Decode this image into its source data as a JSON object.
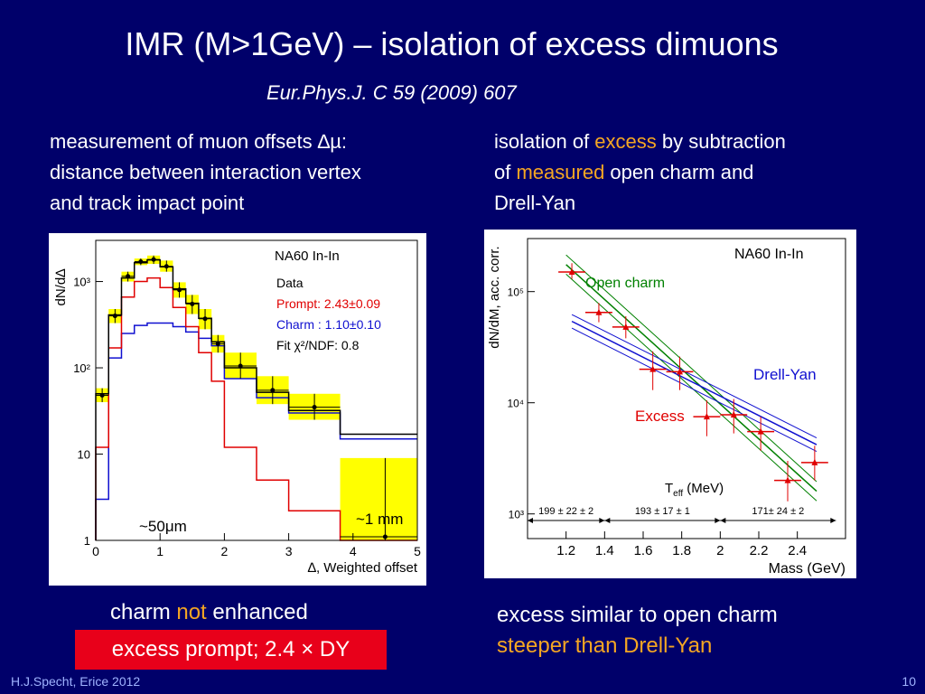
{
  "slide": {
    "title": "IMR (M>1GeV) – isolation of excess dimuons",
    "reference": "Eur.Phys.J. C 59 (2009) 607",
    "left_note_l1": "measurement of muon offsets ∆µ:",
    "left_note_l2": "distance between interaction vertex",
    "left_note_l3": "and track impact point",
    "right_note_a": "isolation of ",
    "right_note_b": "excess",
    "right_note_c": " by subtraction",
    "right_note_d": "of ",
    "right_note_e": "measured",
    "right_note_f": " open charm and",
    "right_note_g": "Drell-Yan",
    "bottom_left_a": "charm ",
    "bottom_left_b": "not",
    "bottom_left_c": " enhanced",
    "boxed_text": "excess prompt;  2.4 × DY",
    "bottom_right_1": "excess similar to open charm",
    "bottom_right_2": "steeper than Drell-Yan",
    "footer_left": "H.J.Specht, Erice 2012",
    "footer_right": "10"
  },
  "colors": {
    "background": "#00006a",
    "highlight": "#f5a623",
    "boxed": "#e8001a",
    "prompt": "#e00000",
    "charm": "#1010d0",
    "band": "#ffff00",
    "open_charm": "#008000"
  },
  "chart_data": [
    {
      "type": "bar",
      "label_top": "NA60 In-In",
      "ylabel": "dN/d∆",
      "xlabel": "∆, Weighted offset",
      "xlim": [
        0,
        5
      ],
      "ylim": [
        1,
        3000
      ],
      "yscale": "log",
      "x_ticks": [
        "0",
        "1",
        "2",
        "3",
        "4",
        "5"
      ],
      "y_ticks": [
        {
          "v": 1,
          "t": "1"
        },
        {
          "v": 10,
          "t": "10"
        },
        {
          "v": 100,
          "t": "10²"
        },
        {
          "v": 1000,
          "t": "10³"
        }
      ],
      "legend": [
        "Data",
        "Prompt: 2.43±0.09",
        "Charm : 1.10±0.10",
        "Fit  χ²/NDF:  0.8"
      ],
      "bin_edges": [
        0.0,
        0.2,
        0.4,
        0.6,
        0.8,
        1.0,
        1.2,
        1.4,
        1.6,
        1.8,
        2.0,
        2.5,
        3.0,
        3.8,
        5.0
      ],
      "data": {
        "x": [
          0.1,
          0.3,
          0.5,
          0.7,
          0.9,
          1.1,
          1.3,
          1.5,
          1.7,
          1.9,
          2.25,
          2.75,
          3.4,
          4.5
        ],
        "y": [
          48,
          400,
          1150,
          1700,
          1800,
          1500,
          800,
          550,
          370,
          190,
          105,
          55,
          35,
          1.1
        ],
        "band_lo": [
          40,
          330,
          1000,
          1550,
          1600,
          1300,
          650,
          420,
          280,
          150,
          75,
          38,
          25,
          1
        ],
        "band_hi": [
          58,
          480,
          1300,
          1850,
          2000,
          1750,
          980,
          700,
          480,
          240,
          150,
          80,
          50,
          9
        ]
      },
      "series": [
        {
          "name": "Prompt",
          "values": [
            12,
            170,
            660,
            1000,
            1100,
            850,
            500,
            300,
            150,
            70,
            12,
            5,
            2.2,
            1
          ]
        },
        {
          "name": "Charm",
          "values": [
            3,
            130,
            250,
            310,
            330,
            330,
            300,
            260,
            220,
            180,
            75,
            45,
            30,
            15
          ]
        }
      ],
      "fit_total": [
        50,
        410,
        1100,
        1650,
        1780,
        1480,
        820,
        560,
        375,
        200,
        100,
        52,
        32,
        17
      ],
      "annotations": [
        "~50μm",
        "~1 mm"
      ]
    },
    {
      "type": "scatter",
      "label_top": "NA60 In-In",
      "ylabel": "dN/dM, acc. corr.",
      "xlabel": "Mass (GeV)",
      "xlim": [
        1.0,
        2.65
      ],
      "ylim": [
        600,
        300000
      ],
      "yscale": "log",
      "x_ticks": [
        "1.2",
        "1.4",
        "1.6",
        "1.8",
        "2",
        "2.2",
        "2.4"
      ],
      "y_ticks": [
        {
          "v": 1000,
          "t": "10³"
        },
        {
          "v": 10000,
          "t": "10⁴"
        },
        {
          "v": 100000,
          "t": "10⁵"
        }
      ],
      "excess": {
        "x": [
          1.23,
          1.37,
          1.51,
          1.65,
          1.79,
          1.93,
          2.07,
          2.21,
          2.35,
          2.49
        ],
        "y": [
          150000,
          65000,
          48000,
          20000,
          19000,
          7500,
          7800,
          5500,
          2000,
          2900
        ],
        "xerr": 0.07,
        "yerr_lo": [
          20000,
          12000,
          10000,
          7000,
          6000,
          2500,
          2500,
          1800,
          700,
          900
        ],
        "yerr_hi": [
          30000,
          14000,
          12000,
          9000,
          7000,
          3000,
          3000,
          2000,
          1000,
          1200
        ]
      },
      "open_charm_line": {
        "x": [
          1.2,
          2.5
        ],
        "y": [
          175000,
          1600
        ],
        "spread": 1.22
      },
      "drell_yan_line": {
        "x": [
          1.23,
          2.5
        ],
        "y": [
          54000,
          4200
        ],
        "spread": 1.15
      },
      "series_labels": [
        "Open charm",
        "Drell-Yan",
        "Excess"
      ],
      "teff_label": "T",
      "teff_sub": "eff",
      "teff_unit": " (MeV)",
      "teff_values": [
        "199 ± 22 ± 2",
        "193 ± 17 ± 1",
        "171± 24 ± 2"
      ],
      "teff_ranges": [
        [
          1.0,
          1.4
        ],
        [
          1.4,
          2.0
        ],
        [
          2.0,
          2.6
        ]
      ]
    }
  ]
}
